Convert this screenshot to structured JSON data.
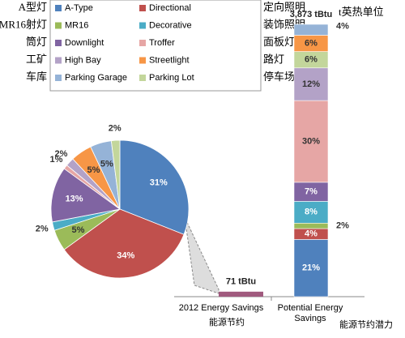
{
  "chart_data": [
    {
      "type": "pie",
      "categories": [
        "A-Type",
        "Directional",
        "MR16",
        "Decorative",
        "Downlight",
        "Troffer",
        "High Bay",
        "Streetlight",
        "Parking Garage",
        "Parking Lot"
      ],
      "colors": [
        "#4f81bd",
        "#c0504d",
        "#9bbb59",
        "#4bacc6",
        "#8064a2",
        "#e6a6a5",
        "#b3a2c7",
        "#f79646",
        "#95b3d7",
        "#c3d69b"
      ],
      "values": [
        31,
        34,
        5,
        2,
        13,
        1,
        2,
        5,
        5,
        2
      ],
      "value_labels": [
        "31%",
        "34%",
        "5%",
        "2%",
        "13%",
        "1%",
        "2%",
        "5%",
        "5%",
        "2%"
      ]
    },
    {
      "type": "bar",
      "categories": [
        "2012 Energy Savings",
        "Potential Energy Savings"
      ],
      "values": [
        71,
        3873
      ],
      "value_labels": [
        "71 tBtu",
        "3,873 tBtu"
      ],
      "color": "#a05a7e",
      "series": [
        {
          "name": "A-Type",
          "color": "#4f81bd",
          "values": [
            null,
            21
          ],
          "value_labels": [
            null,
            "21%"
          ]
        },
        {
          "name": "Directional",
          "color": "#c0504d",
          "values": [
            null,
            4
          ],
          "value_labels": [
            null,
            "4%"
          ]
        },
        {
          "name": "MR16",
          "color": "#9bbb59",
          "values": [
            null,
            2
          ],
          "value_labels": [
            null,
            "2%"
          ]
        },
        {
          "name": "Decorative",
          "color": "#4bacc6",
          "values": [
            null,
            8
          ],
          "value_labels": [
            null,
            "8%"
          ]
        },
        {
          "name": "Downlight",
          "color": "#8064a2",
          "values": [
            null,
            7
          ],
          "value_labels": [
            null,
            "7%"
          ]
        },
        {
          "name": "Troffer",
          "color": "#e6a6a5",
          "values": [
            null,
            30
          ],
          "value_labels": [
            null,
            "30%"
          ]
        },
        {
          "name": "High Bay",
          "color": "#b3a2c7",
          "values": [
            null,
            12
          ],
          "value_labels": [
            null,
            "12%"
          ]
        },
        {
          "name": "Parking Lot",
          "color": "#c3d69b",
          "values": [
            null,
            6
          ],
          "value_labels": [
            null,
            "6%"
          ]
        },
        {
          "name": "Streetlight",
          "color": "#f79646",
          "values": [
            null,
            6
          ],
          "value_labels": [
            null,
            "6%"
          ]
        },
        {
          "name": "Parking Garage",
          "color": "#95b3d7",
          "values": [
            null,
            4
          ],
          "value_labels": [
            null,
            "4%"
          ]
        }
      ]
    }
  ],
  "annotations": {
    "legend_left": [
      "A型灯",
      "MR16射灯",
      "筒灯",
      "工矿",
      "车库"
    ],
    "legend_right": [
      "定向照明",
      "装饰照明",
      "面板灯",
      "路灯",
      "停车场"
    ],
    "unit": "t英热单位",
    "bar_labels": [
      "能源节约",
      "能源节约潜力"
    ]
  }
}
